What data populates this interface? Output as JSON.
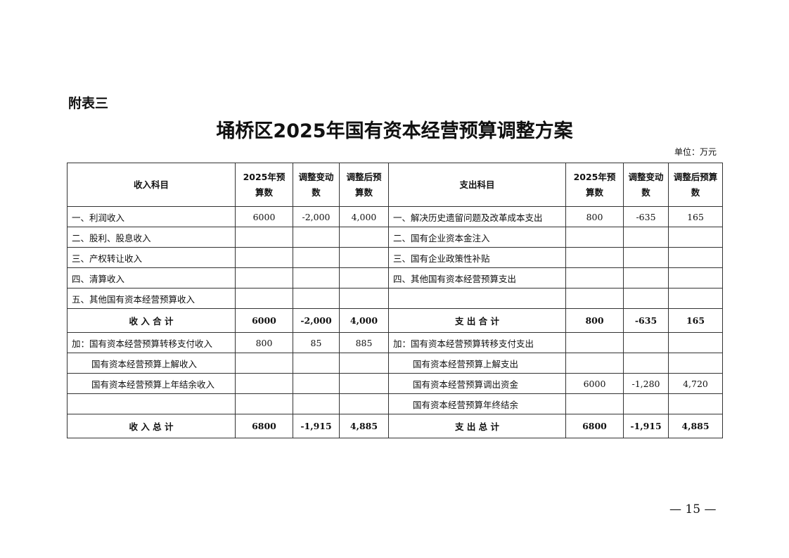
{
  "appendix_label": "附表三",
  "title": "埇桥区2025年国有资本经营预算调整方案",
  "unit": "单位：万元",
  "headers": {
    "income_item": "收入科目",
    "budget_2025": "2025年预算数",
    "adjust_change": "调整变动数",
    "adjusted_budget": "调整后预算数",
    "expense_item": "支出科目"
  },
  "rows": [
    {
      "left": {
        "label": "一、利润收入",
        "budget": "6000",
        "change": "-2,000",
        "adjusted": "4,000"
      },
      "right": {
        "label": "一、解决历史遗留问题及改革成本支出",
        "budget": "800",
        "change": "-635",
        "adjusted": "165"
      }
    },
    {
      "left": {
        "label": "二、股利、股息收入",
        "budget": "",
        "change": "",
        "adjusted": ""
      },
      "right": {
        "label": "二、国有企业资本金注入",
        "budget": "",
        "change": "",
        "adjusted": ""
      }
    },
    {
      "left": {
        "label": "三、产权转让收入",
        "budget": "",
        "change": "",
        "adjusted": ""
      },
      "right": {
        "label": "三、国有企业政策性补贴",
        "budget": "",
        "change": "",
        "adjusted": ""
      }
    },
    {
      "left": {
        "label": "四、清算收入",
        "budget": "",
        "change": "",
        "adjusted": ""
      },
      "right": {
        "label": "四、其他国有资本经营预算支出",
        "budget": "",
        "change": "",
        "adjusted": ""
      }
    },
    {
      "left": {
        "label": "五、其他国有资本经营预算收入",
        "budget": "",
        "change": "",
        "adjusted": ""
      },
      "right": {
        "label": "",
        "budget": "",
        "change": "",
        "adjusted": ""
      }
    },
    {
      "left": {
        "label": "收 入 合 计",
        "budget": "6000",
        "change": "-2,000",
        "adjusted": "4,000"
      },
      "right": {
        "label": "支 出 合 计",
        "budget": "800",
        "change": "-635",
        "adjusted": "165"
      }
    },
    {
      "left": {
        "label": "加：国有资本经营预算转移支付收入",
        "budget": "800",
        "change": "85",
        "adjusted": "885"
      },
      "right": {
        "label": "加：国有资本经营预算转移支付支出",
        "budget": "",
        "change": "",
        "adjusted": ""
      }
    },
    {
      "left": {
        "label": "国有资本经营预算上解收入",
        "budget": "",
        "change": "",
        "adjusted": ""
      },
      "right": {
        "label": "国有资本经营预算上解支出",
        "budget": "",
        "change": "",
        "adjusted": ""
      }
    },
    {
      "left": {
        "label": "国有资本经营预算上年结余收入",
        "budget": "",
        "change": "",
        "adjusted": ""
      },
      "right": {
        "label": "国有资本经营预算调出资金",
        "budget": "6000",
        "change": "-1,280",
        "adjusted": "4,720"
      }
    },
    {
      "left": {
        "label": "",
        "budget": "",
        "change": "",
        "adjusted": ""
      },
      "right": {
        "label": "国有资本经营预算年终结余",
        "budget": "",
        "change": "",
        "adjusted": ""
      }
    },
    {
      "left": {
        "label": "收 入 总 计",
        "budget": "6800",
        "change": "-1,915",
        "adjusted": "4,885"
      },
      "right": {
        "label": "支 出 总 计",
        "budget": "6800",
        "change": "-1,915",
        "adjusted": "4,885"
      }
    }
  ],
  "page_number": "— 15 —"
}
